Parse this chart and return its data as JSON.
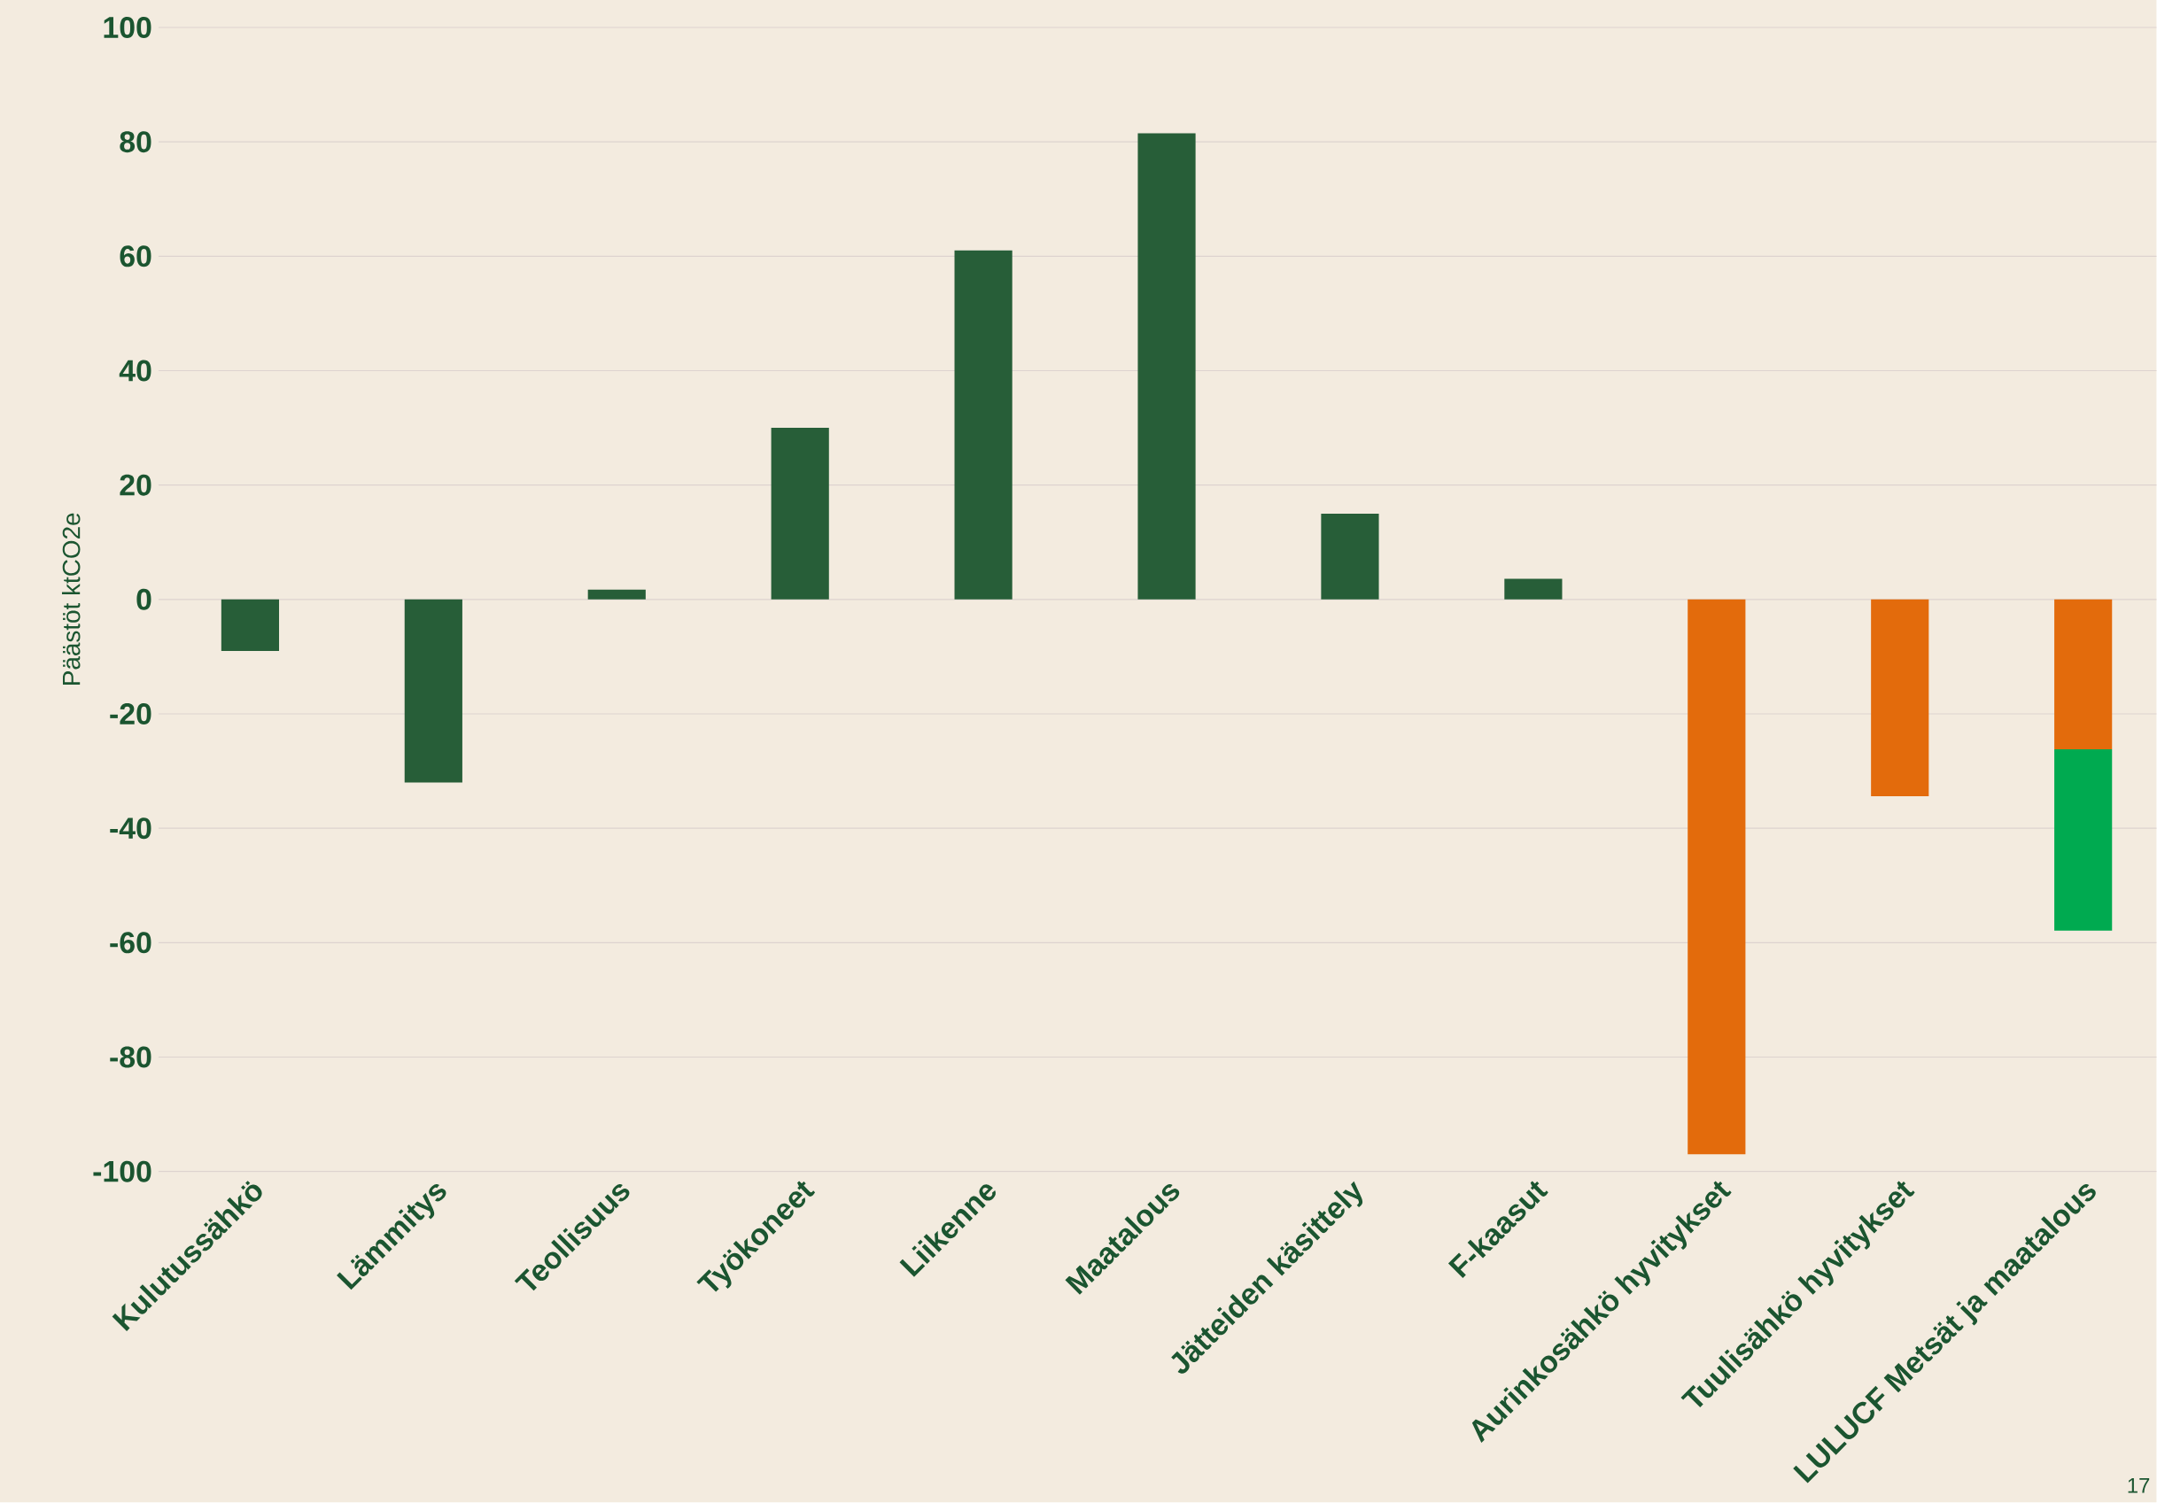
{
  "chart_data": {
    "type": "bar",
    "stacked": true,
    "ylabel": "Päästöt ktCO2e",
    "categories": [
      "Kulutussähkö",
      "Lämmitys",
      "Teollisuus",
      "Työkoneet",
      "Liikenne",
      "Maatalous",
      "Jätteiden käsittely",
      "F-kaasut",
      "Aurinkosähkö hyvitykset",
      "Tuulisähkö hyvitykset",
      "LULUCF Metsät ja maatalous"
    ],
    "series": [
      {
        "colors": [
          "#275e38",
          "#275e38",
          "#275e38",
          "#275e38",
          "#275e38",
          "#275e38",
          "#275e38",
          "#275e38",
          "#e36b0c",
          "#e36b0c",
          "#e36b0c"
        ],
        "values": [
          -9,
          -32,
          1.7,
          30,
          61,
          81.5,
          15,
          3.6,
          -97,
          -34.4,
          -26.2
        ]
      },
      {
        "color": "#00aa50",
        "values": [
          null,
          null,
          null,
          null,
          null,
          null,
          null,
          null,
          null,
          null,
          -31.7
        ]
      }
    ],
    "ylim": [
      -100,
      100
    ],
    "yticks": [
      -100,
      -80,
      -60,
      -40,
      -20,
      0,
      20,
      40,
      60,
      80,
      100
    ],
    "grid": "y",
    "annotations": [
      "17"
    ]
  }
}
